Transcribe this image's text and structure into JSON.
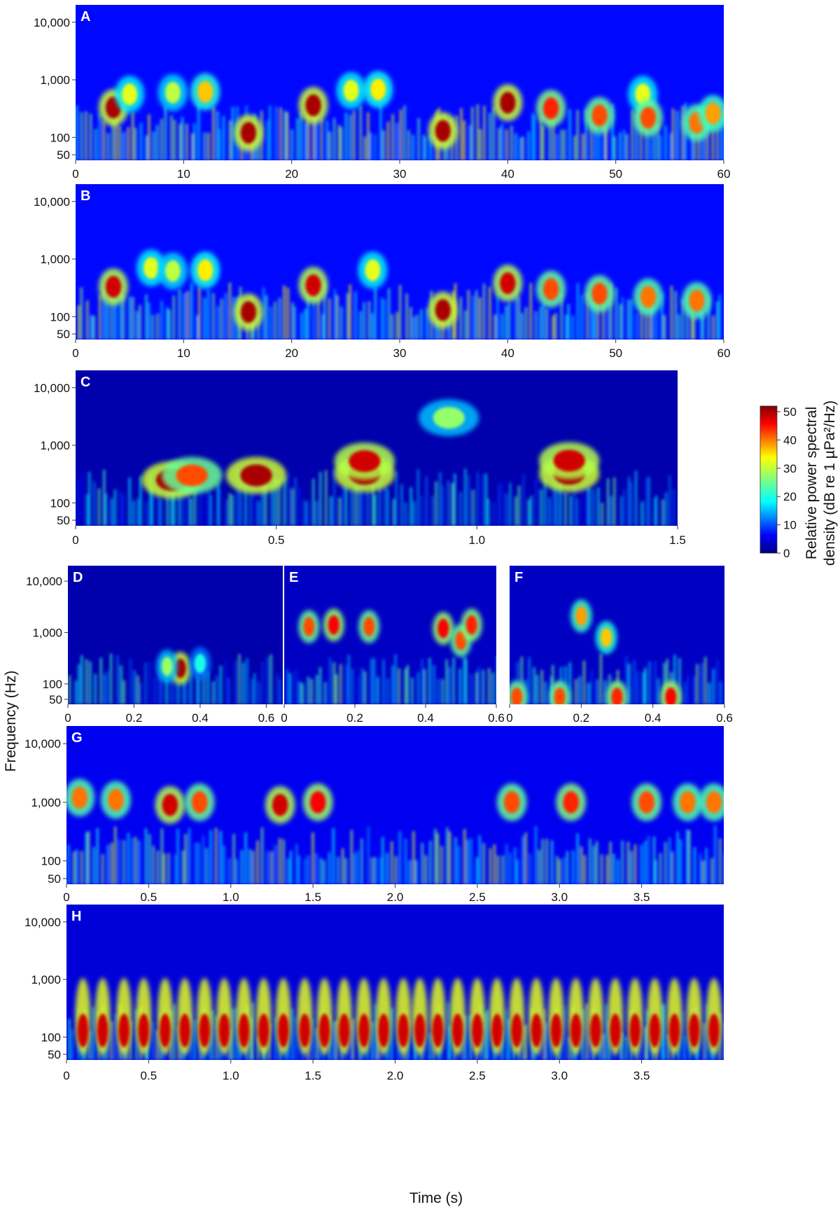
{
  "figure": {
    "y_axis_title": "Frequency (Hz)",
    "x_axis_title": "Time (s)",
    "colorbar": {
      "title_line1": "Relative power spectral",
      "title_line2": "density (dB re 1 µPa²/Hz)",
      "ticks": [
        "0",
        "10",
        "20",
        "30",
        "40",
        "50"
      ],
      "range": [
        0,
        50
      ],
      "colormap": "jet"
    }
  },
  "chart_data": [
    {
      "type": "heatmap",
      "panel": "A",
      "xlim": [
        0,
        60
      ],
      "ylim_hz": [
        40,
        20000
      ],
      "y_scale": "log",
      "x_ticks": [
        "0",
        "10",
        "20",
        "30",
        "40",
        "50",
        "60"
      ],
      "y_ticks": [
        "50",
        "100",
        "1,000",
        "10,000"
      ],
      "background_level_db": 12,
      "calls": [
        {
          "t": 3.5,
          "f_hz": 330,
          "level_db": 48
        },
        {
          "t": 5.0,
          "f_hz": 560,
          "level_db": 30
        },
        {
          "t": 9.0,
          "f_hz": 600,
          "level_db": 28
        },
        {
          "t": 12.0,
          "f_hz": 620,
          "level_db": 34
        },
        {
          "t": 16.0,
          "f_hz": 120,
          "level_db": 48
        },
        {
          "t": 22.0,
          "f_hz": 360,
          "level_db": 48
        },
        {
          "t": 25.5,
          "f_hz": 650,
          "level_db": 30
        },
        {
          "t": 28.0,
          "f_hz": 680,
          "level_db": 32
        },
        {
          "t": 34.0,
          "f_hz": 130,
          "level_db": 48
        },
        {
          "t": 40.0,
          "f_hz": 400,
          "level_db": 48
        },
        {
          "t": 44.0,
          "f_hz": 320,
          "level_db": 42
        },
        {
          "t": 48.5,
          "f_hz": 240,
          "level_db": 40
        },
        {
          "t": 52.5,
          "f_hz": 560,
          "level_db": 30
        },
        {
          "t": 53.0,
          "f_hz": 220,
          "level_db": 40
        },
        {
          "t": 57.5,
          "f_hz": 180,
          "level_db": 38
        },
        {
          "t": 59.0,
          "f_hz": 260,
          "level_db": 36
        }
      ]
    },
    {
      "type": "heatmap",
      "panel": "B",
      "xlim": [
        0,
        60
      ],
      "ylim_hz": [
        40,
        20000
      ],
      "y_scale": "log",
      "x_ticks": [
        "0",
        "10",
        "20",
        "30",
        "40",
        "50",
        "60"
      ],
      "y_ticks": [
        "50",
        "100",
        "1,000",
        "10,000"
      ],
      "background_level_db": 12,
      "calls": [
        {
          "t": 3.5,
          "f_hz": 330,
          "level_db": 46
        },
        {
          "t": 7.0,
          "f_hz": 700,
          "level_db": 30
        },
        {
          "t": 9.0,
          "f_hz": 620,
          "level_db": 28
        },
        {
          "t": 12.0,
          "f_hz": 640,
          "level_db": 32
        },
        {
          "t": 16.0,
          "f_hz": 120,
          "level_db": 48
        },
        {
          "t": 22.0,
          "f_hz": 350,
          "level_db": 46
        },
        {
          "t": 27.5,
          "f_hz": 640,
          "level_db": 30
        },
        {
          "t": 34.0,
          "f_hz": 130,
          "level_db": 48
        },
        {
          "t": 40.0,
          "f_hz": 380,
          "level_db": 46
        },
        {
          "t": 44.0,
          "f_hz": 300,
          "level_db": 40
        },
        {
          "t": 48.5,
          "f_hz": 250,
          "level_db": 40
        },
        {
          "t": 53.0,
          "f_hz": 220,
          "level_db": 38
        },
        {
          "t": 57.5,
          "f_hz": 190,
          "level_db": 38
        }
      ]
    },
    {
      "type": "heatmap",
      "panel": "C",
      "xlim": [
        0,
        1.5
      ],
      "ylim_hz": [
        40,
        20000
      ],
      "y_scale": "log",
      "x_ticks": [
        "0",
        "0.5",
        "1.0",
        "1.5"
      ],
      "y_ticks": [
        "50",
        "100",
        "1,000",
        "10,000"
      ],
      "background_level_db": 4,
      "calls": [
        {
          "t": 0.24,
          "f_hz": 250,
          "level_db": 48
        },
        {
          "t": 0.29,
          "f_hz": 300,
          "level_db": 40
        },
        {
          "t": 0.45,
          "f_hz": 300,
          "level_db": 48
        },
        {
          "t": 0.72,
          "f_hz": 320,
          "level_db": 48
        },
        {
          "t": 0.72,
          "f_hz": 530,
          "level_db": 46
        },
        {
          "t": 1.23,
          "f_hz": 320,
          "level_db": 48
        },
        {
          "t": 1.23,
          "f_hz": 540,
          "level_db": 46
        },
        {
          "t": 0.93,
          "f_hz": 3000,
          "level_db": 26
        }
      ]
    },
    {
      "type": "heatmap",
      "panel": "D",
      "xlim": [
        0,
        0.65
      ],
      "ylim_hz": [
        40,
        20000
      ],
      "y_scale": "log",
      "x_ticks": [
        "0",
        "0.2",
        "0.4",
        "0.6"
      ],
      "y_ticks": [
        "50",
        "100",
        "1,000",
        "10,000"
      ],
      "background_level_db": 4,
      "calls": [
        {
          "t": 0.34,
          "f_hz": 200,
          "level_db": 48
        },
        {
          "t": 0.3,
          "f_hz": 220,
          "level_db": 26
        },
        {
          "t": 0.4,
          "f_hz": 250,
          "level_db": 20
        }
      ]
    },
    {
      "type": "heatmap",
      "panel": "E",
      "xlim": [
        0,
        0.6
      ],
      "ylim_hz": [
        40,
        20000
      ],
      "y_scale": "log",
      "x_ticks": [
        "0",
        "0.2",
        "0.4",
        "0.6"
      ],
      "y_ticks": [],
      "background_level_db": 6,
      "calls": [
        {
          "t": 0.07,
          "f_hz": 1300,
          "level_db": 40
        },
        {
          "t": 0.14,
          "f_hz": 1400,
          "level_db": 44
        },
        {
          "t": 0.24,
          "f_hz": 1300,
          "level_db": 40
        },
        {
          "t": 0.45,
          "f_hz": 1200,
          "level_db": 44
        },
        {
          "t": 0.5,
          "f_hz": 700,
          "level_db": 40
        },
        {
          "t": 0.53,
          "f_hz": 1400,
          "level_db": 42
        }
      ]
    },
    {
      "type": "heatmap",
      "panel": "F",
      "xlim": [
        0,
        0.6
      ],
      "ylim_hz": [
        40,
        20000
      ],
      "y_scale": "log",
      "x_ticks": [
        "0",
        "0.2",
        "0.4",
        "0.6"
      ],
      "y_ticks": [],
      "background_level_db": 6,
      "calls": [
        {
          "t": 0.27,
          "f_hz": 800,
          "level_db": 34
        },
        {
          "t": 0.2,
          "f_hz": 2100,
          "level_db": 36
        },
        {
          "t": 0.02,
          "f_hz": 55,
          "level_db": 40
        },
        {
          "t": 0.14,
          "f_hz": 55,
          "level_db": 40
        },
        {
          "t": 0.3,
          "f_hz": 55,
          "level_db": 42
        },
        {
          "t": 0.45,
          "f_hz": 55,
          "level_db": 44
        }
      ]
    },
    {
      "type": "heatmap",
      "panel": "G",
      "xlim": [
        0,
        4.0
      ],
      "ylim_hz": [
        40,
        20000
      ],
      "y_scale": "log",
      "x_ticks": [
        "0",
        "0.5",
        "1.0",
        "1.5",
        "2.0",
        "2.5",
        "3.0",
        "3.5"
      ],
      "y_ticks": [
        "50",
        "100",
        "1,000",
        "10,000"
      ],
      "background_level_db": 10,
      "calls": [
        {
          "t": 0.08,
          "f_hz": 1200,
          "level_db": 38
        },
        {
          "t": 0.3,
          "f_hz": 1100,
          "level_db": 38
        },
        {
          "t": 0.63,
          "f_hz": 900,
          "level_db": 46
        },
        {
          "t": 0.81,
          "f_hz": 1000,
          "level_db": 40
        },
        {
          "t": 1.3,
          "f_hz": 900,
          "level_db": 46
        },
        {
          "t": 1.53,
          "f_hz": 1000,
          "level_db": 44
        },
        {
          "t": 2.71,
          "f_hz": 1000,
          "level_db": 40
        },
        {
          "t": 3.07,
          "f_hz": 1000,
          "level_db": 42
        },
        {
          "t": 3.53,
          "f_hz": 1000,
          "level_db": 40
        },
        {
          "t": 3.78,
          "f_hz": 1000,
          "level_db": 38
        },
        {
          "t": 3.94,
          "f_hz": 1000,
          "level_db": 38
        }
      ]
    },
    {
      "type": "heatmap",
      "panel": "H",
      "xlim": [
        0,
        4.0
      ],
      "ylim_hz": [
        40,
        20000
      ],
      "y_scale": "log",
      "x_ticks": [
        "0",
        "0.5",
        "1.0",
        "1.5",
        "2.0",
        "2.5",
        "3.0",
        "3.5"
      ],
      "y_ticks": [
        "50",
        "100",
        "1,000",
        "10,000"
      ],
      "background_level_db": 8,
      "pulse_onsets_s": [
        0.1,
        0.22,
        0.35,
        0.47,
        0.6,
        0.72,
        0.84,
        0.96,
        1.08,
        1.2,
        1.32,
        1.45,
        1.57,
        1.69,
        1.81,
        1.93,
        2.05,
        2.15,
        2.26,
        2.38,
        2.5,
        2.62,
        2.74,
        2.86,
        2.98,
        3.1,
        3.22,
        3.34,
        3.46,
        3.58,
        3.7,
        3.82,
        3.94
      ],
      "pulse_peak_f_hz": 130,
      "pulse_level_db": 46
    }
  ]
}
